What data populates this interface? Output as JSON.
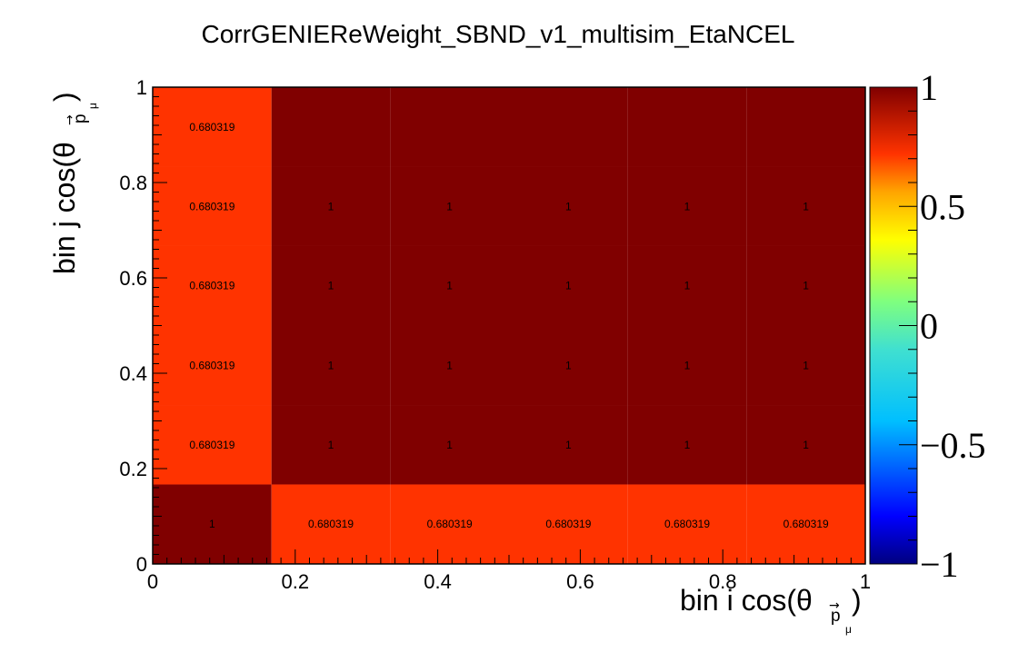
{
  "chart_data": {
    "type": "heatmap",
    "title": "CorrGENIEReWeight_SBND_v1_multisim_EtaNCEL",
    "xlabel": "bin i cos(θ",
    "xlabel_sub": "p",
    "xlabel_subsub": "μ",
    "ylabel": "bin j cos(θ",
    "ylabel_sub": "p",
    "ylabel_subsub": "μ",
    "x_edges": [
      0,
      0.1667,
      0.3333,
      0.5,
      0.6667,
      0.8333,
      1
    ],
    "y_edges": [
      0,
      0.1667,
      0.3333,
      0.5,
      0.6667,
      0.8333,
      1
    ],
    "z": [
      [
        1,
        0.680319,
        0.680319,
        0.680319,
        0.680319,
        0.680319
      ],
      [
        0.680319,
        1,
        1,
        1,
        1,
        1
      ],
      [
        0.680319,
        1,
        1,
        1,
        1,
        1
      ],
      [
        0.680319,
        1,
        1,
        1,
        1,
        1
      ],
      [
        0.680319,
        1,
        1,
        1,
        1,
        1
      ],
      [
        0.680319,
        1,
        1,
        1,
        1,
        1
      ]
    ],
    "cell_labels": [
      [
        "1",
        "0.680319",
        "0.680319",
        "0.680319",
        "0.680319",
        "0.680319"
      ],
      [
        "0.680319",
        "1",
        "1",
        "1",
        "1",
        "1"
      ],
      [
        "0.680319",
        "1",
        "1",
        "1",
        "1",
        "1"
      ],
      [
        "0.680319",
        "1",
        "1",
        "1",
        "1",
        "1"
      ],
      [
        "0.680319",
        "1",
        "1",
        "1",
        "1",
        "1"
      ],
      [
        "0.680319",
        "",
        "",
        "",
        "",
        ""
      ]
    ],
    "xlim": [
      0,
      1
    ],
    "ylim": [
      0,
      1
    ],
    "zlim": [
      -1,
      1
    ],
    "x_ticks": [
      "0",
      "0.2",
      "0.4",
      "0.6",
      "0.8",
      "1"
    ],
    "y_ticks": [
      "0",
      "0.2",
      "0.4",
      "0.6",
      "0.8",
      "1"
    ],
    "z_ticks": [
      "−1",
      "−0.5",
      "0",
      "0.5",
      "1"
    ],
    "z_tick_values": [
      -1,
      -0.5,
      0,
      0.5,
      1
    ],
    "colors": {
      "high": "#800000",
      "mid_high": "#ff3300",
      "colormap_stops": [
        "#00007f",
        "#0000ff",
        "#00bfff",
        "#40e0d0",
        "#7fff7f",
        "#ffff00",
        "#ffa500",
        "#ff3300",
        "#800000"
      ]
    },
    "grid": false
  }
}
